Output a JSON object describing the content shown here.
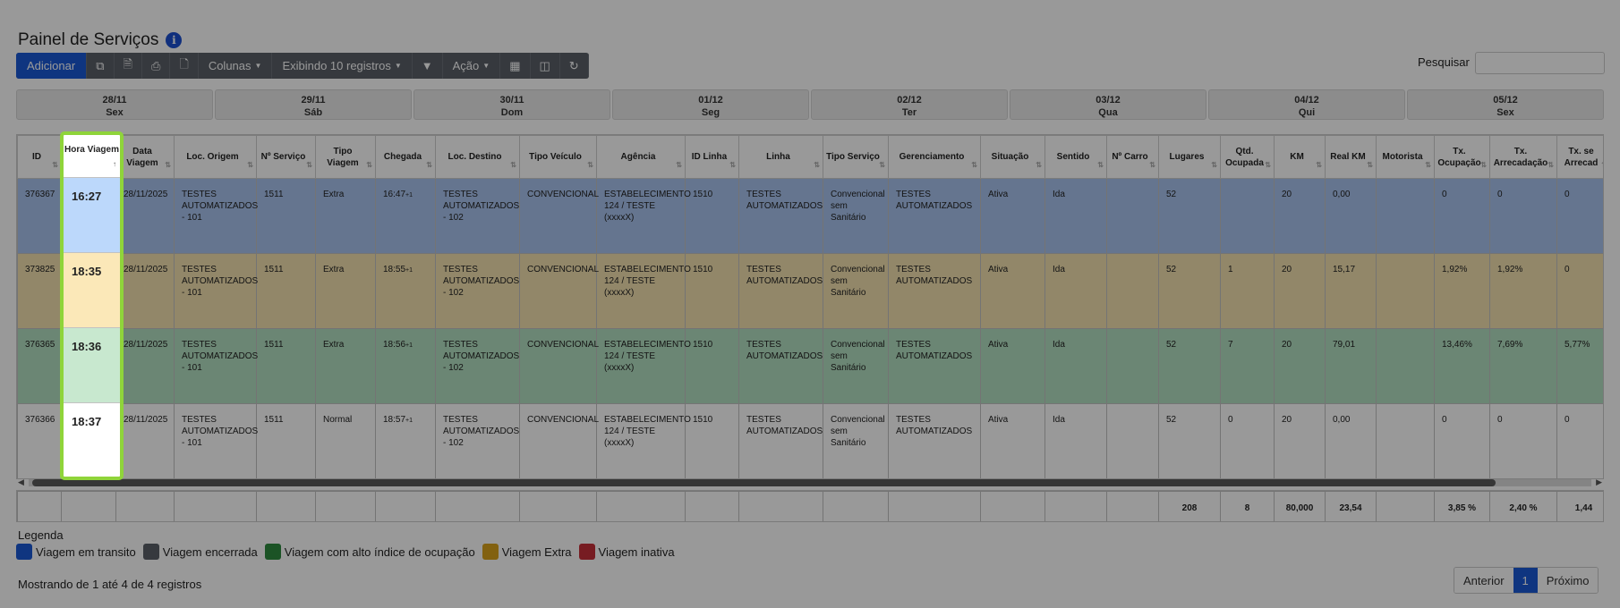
{
  "page": {
    "title": "Painel de Serviços"
  },
  "toolbar": {
    "add_label": "Adicionar",
    "columns_label": "Colunas",
    "showing_label": "Exibindo 10 registros",
    "action_label": "Ação"
  },
  "search": {
    "label": "Pesquisar",
    "value": ""
  },
  "days": [
    {
      "date": "28/11",
      "weekday": "Sex"
    },
    {
      "date": "29/11",
      "weekday": "Sáb"
    },
    {
      "date": "30/11",
      "weekday": "Dom"
    },
    {
      "date": "01/12",
      "weekday": "Seg"
    },
    {
      "date": "02/12",
      "weekday": "Ter"
    },
    {
      "date": "03/12",
      "weekday": "Qua"
    },
    {
      "date": "04/12",
      "weekday": "Qui"
    },
    {
      "date": "05/12",
      "weekday": "Sex"
    }
  ],
  "table": {
    "headers": [
      "ID",
      "Hora Viagem",
      "Data Viagem",
      "Loc. Origem",
      "Nº Serviço",
      "Tipo Viagem",
      "Chegada",
      "Loc. Destino",
      "Tipo Veículo",
      "Agência",
      "ID Linha",
      "Linha",
      "Tipo Serviço",
      "Gerenciamento",
      "Situação",
      "Sentido",
      "Nº Carro",
      "Lugares",
      "Qtd. Ocupada",
      "KM",
      "Real KM",
      "Motorista",
      "Tx. Ocupação",
      "Tx. Arrecadação",
      "Tx. se Arrecad"
    ],
    "rows": [
      {
        "color": "blue",
        "cells": [
          "376367",
          "16:27",
          "28/11/2025",
          "TESTES AUTOMATIZADOS - 101",
          "1511",
          "Extra",
          "16:47",
          "TESTES AUTOMATIZADOS - 102",
          "CONVENCIONAL",
          "ESTABELECIMENTO 124 / TESTE (xxxxX)",
          "1510",
          "TESTES AUTOMATIZADOS",
          "Convencional sem Sanitário",
          "TESTES AUTOMATIZADOS",
          "Ativa",
          "Ida",
          "",
          "52",
          "",
          "20",
          "0,00",
          "",
          "0",
          "0",
          "0"
        ]
      },
      {
        "color": "yellow",
        "cells": [
          "373825",
          "18:35",
          "28/11/2025",
          "TESTES AUTOMATIZADOS - 101",
          "1511",
          "Extra",
          "18:55",
          "TESTES AUTOMATIZADOS - 102",
          "CONVENCIONAL",
          "ESTABELECIMENTO 124 / TESTE (xxxxX)",
          "1510",
          "TESTES AUTOMATIZADOS",
          "Convencional sem Sanitário",
          "TESTES AUTOMATIZADOS",
          "Ativa",
          "Ida",
          "",
          "52",
          "1",
          "20",
          "15,17",
          "",
          "1,92%",
          "1,92%",
          "0"
        ]
      },
      {
        "color": "green",
        "cells": [
          "376365",
          "18:36",
          "28/11/2025",
          "TESTES AUTOMATIZADOS - 101",
          "1511",
          "Extra",
          "18:56",
          "TESTES AUTOMATIZADOS - 102",
          "CONVENCIONAL",
          "ESTABELECIMENTO 124 / TESTE (xxxxX)",
          "1510",
          "TESTES AUTOMATIZADOS",
          "Convencional sem Sanitário",
          "TESTES AUTOMATIZADOS",
          "Ativa",
          "Ida",
          "",
          "52",
          "7",
          "20",
          "79,01",
          "",
          "13,46%",
          "7,69%",
          "5,77%"
        ]
      },
      {
        "color": "white",
        "cells": [
          "376366",
          "18:37",
          "28/11/2025",
          "TESTES AUTOMATIZADOS - 101",
          "1511",
          "Normal",
          "18:57",
          "TESTES AUTOMATIZADOS - 102",
          "CONVENCIONAL",
          "ESTABELECIMENTO 124 / TESTE (xxxxX)",
          "1510",
          "TESTES AUTOMATIZADOS",
          "Convencional sem Sanitário",
          "TESTES AUTOMATIZADOS",
          "Ativa",
          "Ida",
          "",
          "52",
          "0",
          "20",
          "0,00",
          "",
          "0",
          "0",
          "0"
        ]
      }
    ],
    "arrival_suffix": "+1",
    "totals": [
      "",
      "",
      "",
      "",
      "",
      "",
      "",
      "",
      "",
      "",
      "",
      "",
      "",
      "",
      "",
      "",
      "",
      "208",
      "8",
      "80,000",
      "23,54",
      "",
      "3,85 %",
      "2,40 %",
      "1,44"
    ]
  },
  "legend": {
    "title": "Legenda",
    "items": [
      {
        "label": "Viagem em transito",
        "color": "#1959d6"
      },
      {
        "label": "Viagem encerrada",
        "color": "#5a6068"
      },
      {
        "label": "Viagem com alto índice de ocupação",
        "color": "#2e8b3e"
      },
      {
        "label": "Viagem Extra",
        "color": "#d9a21b"
      },
      {
        "label": "Viagem inativa",
        "color": "#c7303a"
      }
    ]
  },
  "footer": {
    "showing_text": "Mostrando de 1 até 4 de 4 registros",
    "prev_label": "Anterior",
    "page": "1",
    "next_label": "Próximo"
  }
}
